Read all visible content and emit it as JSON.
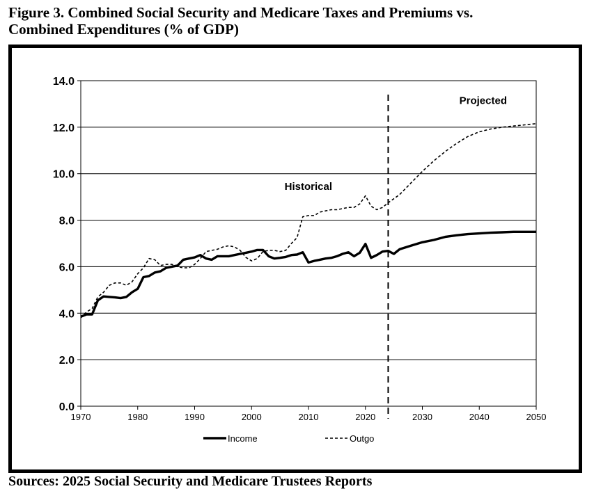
{
  "header": {
    "title_line1": "Figure 3. Combined Social Security and Medicare Taxes and Premiums vs.",
    "title_line2": "Combined Expenditures (% of GDP)"
  },
  "footer": {
    "source": "Sources: 2025 Social Security and Medicare Trustees Reports"
  },
  "chart_data": {
    "type": "line",
    "title": "Figure 3. Combined Social Security and Medicare Taxes and Premiums vs. Combined Expenditures (% of GDP)",
    "xlabel": "",
    "ylabel": "",
    "xlim": [
      1970,
      2050
    ],
    "ylim": [
      0,
      14
    ],
    "x_ticks": [
      1970,
      1980,
      1990,
      2000,
      2010,
      2020,
      2030,
      2040,
      2050
    ],
    "y_ticks": [
      0.0,
      2.0,
      4.0,
      6.0,
      8.0,
      10.0,
      12.0,
      14.0
    ],
    "grid": "horizontal",
    "legend_placement": "bottom",
    "divider_year": 2024,
    "annotations": {
      "historical": "Historical",
      "projected": "Projected"
    },
    "series": [
      {
        "name": "Income",
        "style": "solid-thick",
        "color": "#000000",
        "points": [
          [
            1970,
            3.85
          ],
          [
            1971,
            3.95
          ],
          [
            1972,
            3.95
          ],
          [
            1973,
            4.55
          ],
          [
            1974,
            4.72
          ],
          [
            1975,
            4.7
          ],
          [
            1976,
            4.68
          ],
          [
            1977,
            4.65
          ],
          [
            1978,
            4.7
          ],
          [
            1979,
            4.9
          ],
          [
            1980,
            5.05
          ],
          [
            1981,
            5.55
          ],
          [
            1982,
            5.6
          ],
          [
            1983,
            5.75
          ],
          [
            1984,
            5.8
          ],
          [
            1985,
            5.95
          ],
          [
            1986,
            6.0
          ],
          [
            1987,
            6.05
          ],
          [
            1988,
            6.3
          ],
          [
            1989,
            6.35
          ],
          [
            1990,
            6.4
          ],
          [
            1991,
            6.5
          ],
          [
            1992,
            6.35
          ],
          [
            1993,
            6.3
          ],
          [
            1994,
            6.45
          ],
          [
            1995,
            6.45
          ],
          [
            1996,
            6.45
          ],
          [
            1997,
            6.5
          ],
          [
            1998,
            6.55
          ],
          [
            1999,
            6.6
          ],
          [
            2000,
            6.65
          ],
          [
            2001,
            6.72
          ],
          [
            2002,
            6.72
          ],
          [
            2003,
            6.45
          ],
          [
            2004,
            6.35
          ],
          [
            2005,
            6.38
          ],
          [
            2006,
            6.42
          ],
          [
            2007,
            6.5
          ],
          [
            2008,
            6.52
          ],
          [
            2009,
            6.62
          ],
          [
            2010,
            6.18
          ],
          [
            2011,
            6.25
          ],
          [
            2012,
            6.3
          ],
          [
            2013,
            6.35
          ],
          [
            2014,
            6.38
          ],
          [
            2015,
            6.45
          ],
          [
            2016,
            6.55
          ],
          [
            2017,
            6.62
          ],
          [
            2018,
            6.45
          ],
          [
            2019,
            6.6
          ],
          [
            2020,
            6.98
          ],
          [
            2021,
            6.38
          ],
          [
            2022,
            6.5
          ],
          [
            2023,
            6.65
          ],
          [
            2024,
            6.68
          ],
          [
            2025,
            6.55
          ],
          [
            2026,
            6.75
          ],
          [
            2028,
            6.9
          ],
          [
            2030,
            7.05
          ],
          [
            2032,
            7.15
          ],
          [
            2034,
            7.28
          ],
          [
            2036,
            7.35
          ],
          [
            2038,
            7.4
          ],
          [
            2040,
            7.43
          ],
          [
            2042,
            7.46
          ],
          [
            2044,
            7.48
          ],
          [
            2046,
            7.5
          ],
          [
            2048,
            7.5
          ],
          [
            2050,
            7.5
          ]
        ]
      },
      {
        "name": "Outgo",
        "style": "dashed",
        "color": "#000000",
        "points": [
          [
            1970,
            3.8
          ],
          [
            1971,
            4.05
          ],
          [
            1972,
            4.2
          ],
          [
            1973,
            4.7
          ],
          [
            1974,
            4.9
          ],
          [
            1975,
            5.2
          ],
          [
            1976,
            5.3
          ],
          [
            1977,
            5.3
          ],
          [
            1978,
            5.2
          ],
          [
            1979,
            5.35
          ],
          [
            1980,
            5.7
          ],
          [
            1981,
            5.95
          ],
          [
            1982,
            6.35
          ],
          [
            1983,
            6.3
          ],
          [
            1984,
            6.05
          ],
          [
            1985,
            6.1
          ],
          [
            1986,
            6.1
          ],
          [
            1987,
            6.0
          ],
          [
            1988,
            5.95
          ],
          [
            1989,
            5.95
          ],
          [
            1990,
            6.1
          ],
          [
            1991,
            6.35
          ],
          [
            1992,
            6.65
          ],
          [
            1993,
            6.7
          ],
          [
            1994,
            6.75
          ],
          [
            1995,
            6.85
          ],
          [
            1996,
            6.9
          ],
          [
            1997,
            6.85
          ],
          [
            1998,
            6.7
          ],
          [
            1999,
            6.4
          ],
          [
            2000,
            6.25
          ],
          [
            2001,
            6.35
          ],
          [
            2002,
            6.65
          ],
          [
            2003,
            6.7
          ],
          [
            2004,
            6.7
          ],
          [
            2005,
            6.65
          ],
          [
            2006,
            6.7
          ],
          [
            2007,
            7.0
          ],
          [
            2008,
            7.25
          ],
          [
            2009,
            8.15
          ],
          [
            2010,
            8.2
          ],
          [
            2011,
            8.2
          ],
          [
            2012,
            8.35
          ],
          [
            2013,
            8.4
          ],
          [
            2014,
            8.45
          ],
          [
            2015,
            8.45
          ],
          [
            2016,
            8.5
          ],
          [
            2017,
            8.55
          ],
          [
            2018,
            8.55
          ],
          [
            2019,
            8.7
          ],
          [
            2020,
            9.05
          ],
          [
            2021,
            8.6
          ],
          [
            2022,
            8.45
          ],
          [
            2023,
            8.55
          ],
          [
            2024,
            8.75
          ],
          [
            2026,
            9.1
          ],
          [
            2028,
            9.6
          ],
          [
            2030,
            10.1
          ],
          [
            2032,
            10.55
          ],
          [
            2034,
            10.95
          ],
          [
            2036,
            11.3
          ],
          [
            2038,
            11.6
          ],
          [
            2040,
            11.8
          ],
          [
            2042,
            11.92
          ],
          [
            2044,
            12.0
          ],
          [
            2046,
            12.05
          ],
          [
            2048,
            12.1
          ],
          [
            2050,
            12.15
          ]
        ]
      }
    ]
  }
}
